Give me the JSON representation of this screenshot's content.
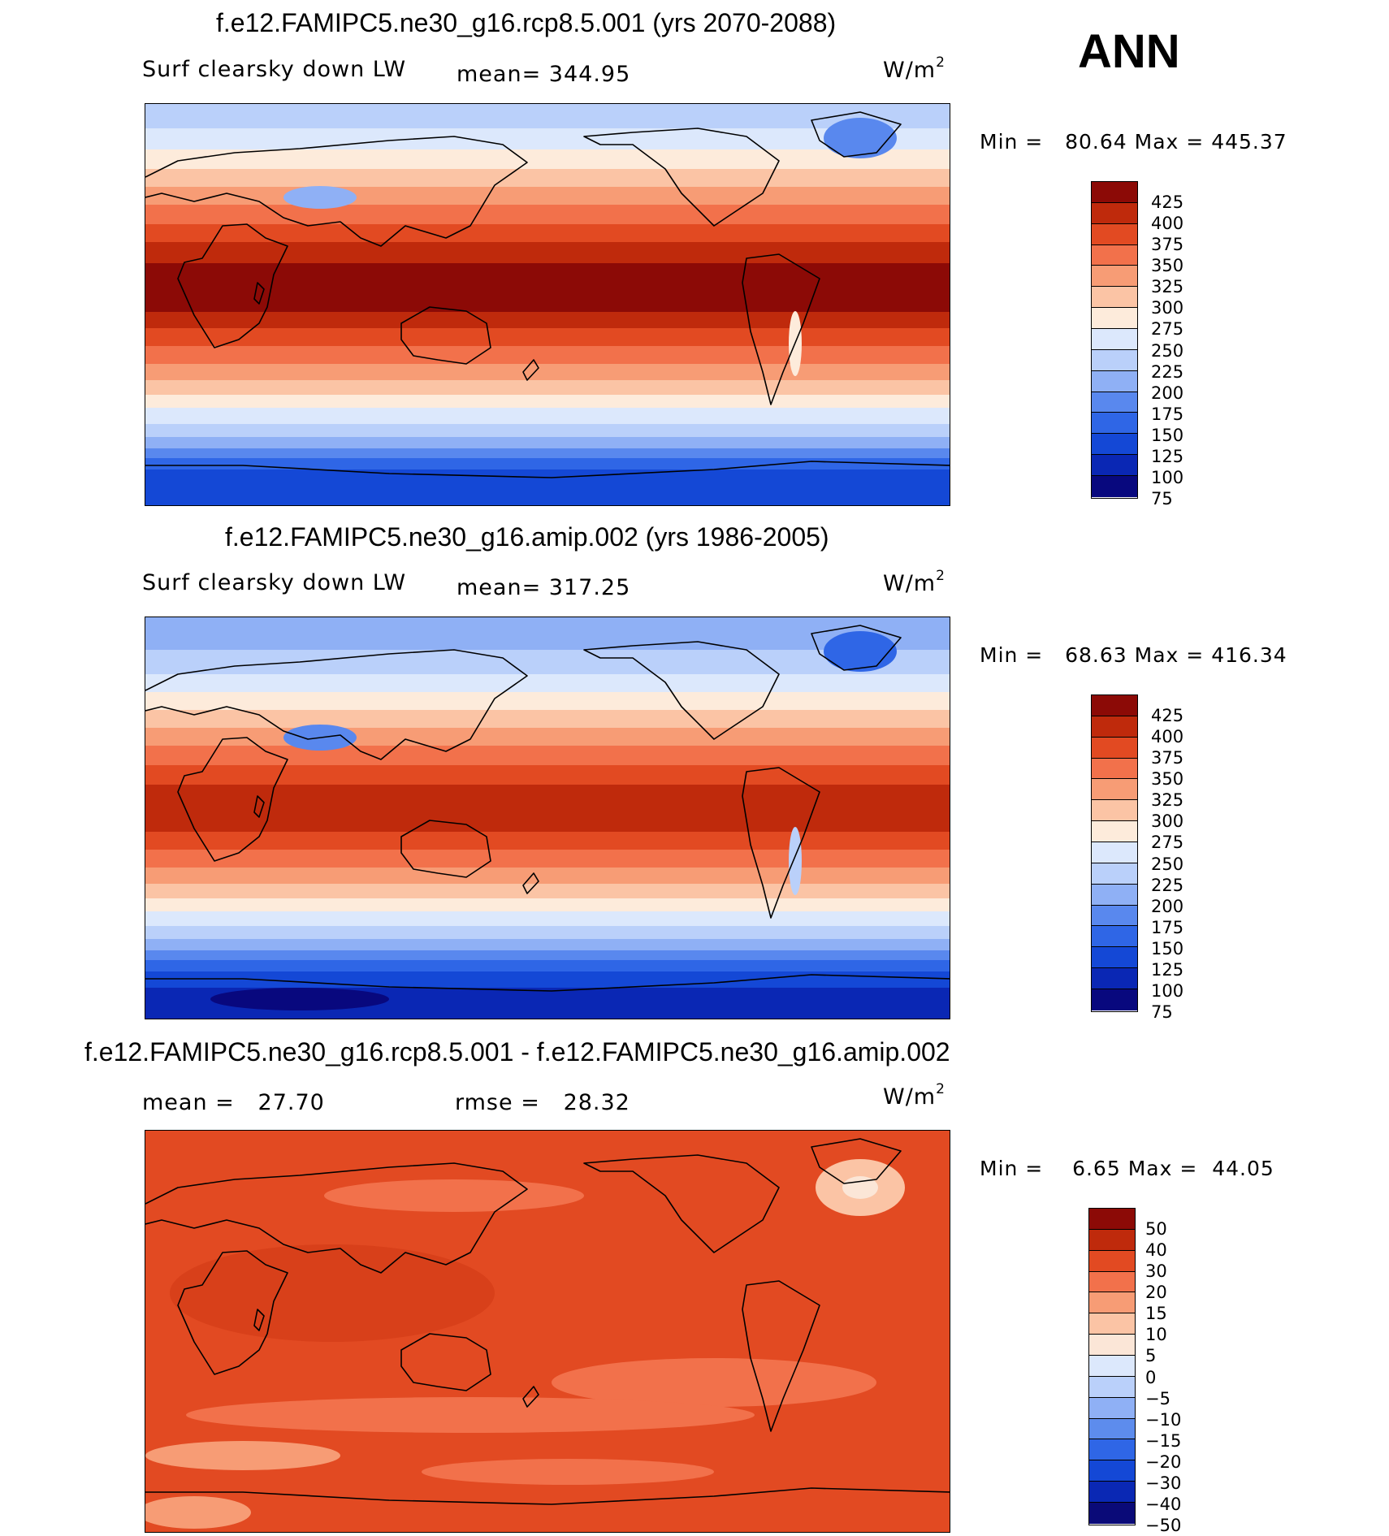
{
  "season": "ANN",
  "colors": {
    "full": [
      "#08087e",
      "#0a27b4",
      "#1448d6",
      "#2f66e6",
      "#5988ee",
      "#8fb0f5",
      "#bad0fa",
      "#dce8fc",
      "#fdebdb",
      "#fbc4a5",
      "#f79c75",
      "#f2714b",
      "#e24a22",
      "#bf2a0c",
      "#8c0a06"
    ],
    "diff": [
      "#0a0a78",
      "#0a28b4",
      "#1448d6",
      "#2f66e6",
      "#5d8ced",
      "#8fb0f5",
      "#bad0fa",
      "#dce8fc",
      "#fbe6d7",
      "#fbc4a5",
      "#f79c75",
      "#f2714b",
      "#e24a22",
      "#bf2a0c",
      "#8c0a06"
    ]
  },
  "chart_data": [
    {
      "type": "heatmap",
      "title": "f.e12.FAMIPC5.ne30_g16.rcp8.5.001 (yrs 2070-2088)",
      "variable": "Surf clearsky down LW",
      "mean_label": "mean=",
      "mean": "344.95",
      "units": "W/m",
      "units_exp": "2",
      "min_label": "Min =",
      "min": "80.64",
      "max_label": "Max =",
      "max": "445.37",
      "colorbar_levels": [
        "425",
        "400",
        "375",
        "350",
        "325",
        "300",
        "275",
        "250",
        "225",
        "200",
        "175",
        "150",
        "125",
        "100",
        "75"
      ]
    },
    {
      "type": "heatmap",
      "title": "f.e12.FAMIPC5.ne30_g16.amip.002 (yrs 1986-2005)",
      "variable": "Surf clearsky down LW",
      "mean_label": "mean=",
      "mean": "317.25",
      "units": "W/m",
      "units_exp": "2",
      "min_label": "Min =",
      "min": "68.63",
      "max_label": "Max =",
      "max": "416.34",
      "colorbar_levels": [
        "425",
        "400",
        "375",
        "350",
        "325",
        "300",
        "275",
        "250",
        "225",
        "200",
        "175",
        "150",
        "125",
        "100",
        "75"
      ]
    },
    {
      "type": "heatmap",
      "title": "f.e12.FAMIPC5.ne30_g16.rcp8.5.001 - f.e12.FAMIPC5.ne30_g16.amip.002",
      "mean_label": "mean =",
      "mean": "27.70",
      "rmse_label": "rmse =",
      "rmse": "28.32",
      "units": "W/m",
      "units_exp": "2",
      "min_label": "Min =",
      "min": "6.65",
      "max_label": "Max =",
      "max": "44.05",
      "colorbar_levels": [
        "50",
        "40",
        "30",
        "20",
        "15",
        "10",
        "5",
        "0",
        "−5",
        "−10",
        "−15",
        "−20",
        "−30",
        "−40",
        "−50"
      ]
    }
  ]
}
